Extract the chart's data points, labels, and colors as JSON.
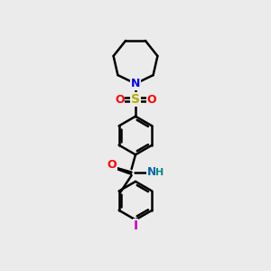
{
  "background_color": "#ebebeb",
  "line_color": "#000000",
  "bond_width": 1.8,
  "atoms": {
    "N_azepane": {
      "symbol": "N",
      "color": "#0000ee"
    },
    "S": {
      "symbol": "S",
      "color": "#bbaa00"
    },
    "O1": {
      "symbol": "O",
      "color": "#ff0000"
    },
    "O2": {
      "symbol": "O",
      "color": "#ff0000"
    },
    "N_amide": {
      "symbol": "N",
      "color": "#0066aa"
    },
    "H_amide": {
      "symbol": "H",
      "color": "#008888"
    },
    "O_carbonyl": {
      "symbol": "O",
      "color": "#ff0000"
    },
    "I": {
      "symbol": "I",
      "color": "#cc00cc"
    }
  },
  "figsize": [
    3.0,
    3.0
  ],
  "dpi": 100
}
